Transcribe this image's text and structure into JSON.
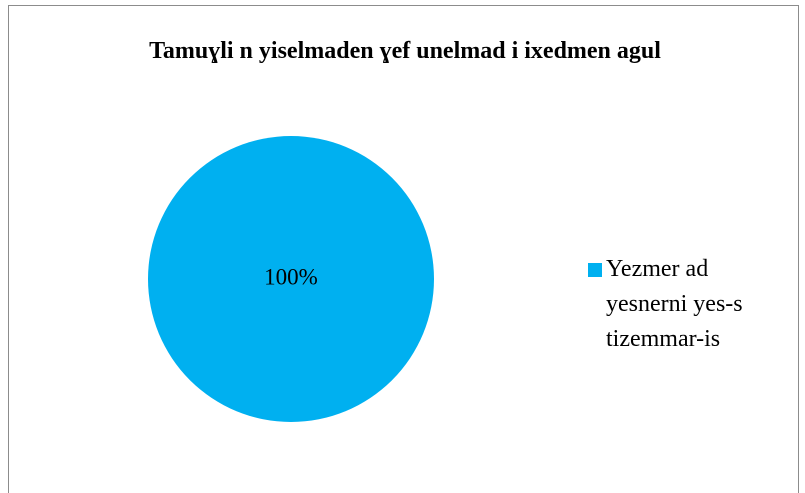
{
  "chart_data": {
    "type": "pie",
    "title": "Tamuɣli n yiselmaden ɣef unelmad i ixedmen agul",
    "categories": [
      "Yezmer ad yesnerni yes-s tizemmar-is"
    ],
    "values": [
      100
    ],
    "value_labels": [
      "100%"
    ],
    "colors": [
      "#00b0f0"
    ],
    "legend": "right"
  }
}
